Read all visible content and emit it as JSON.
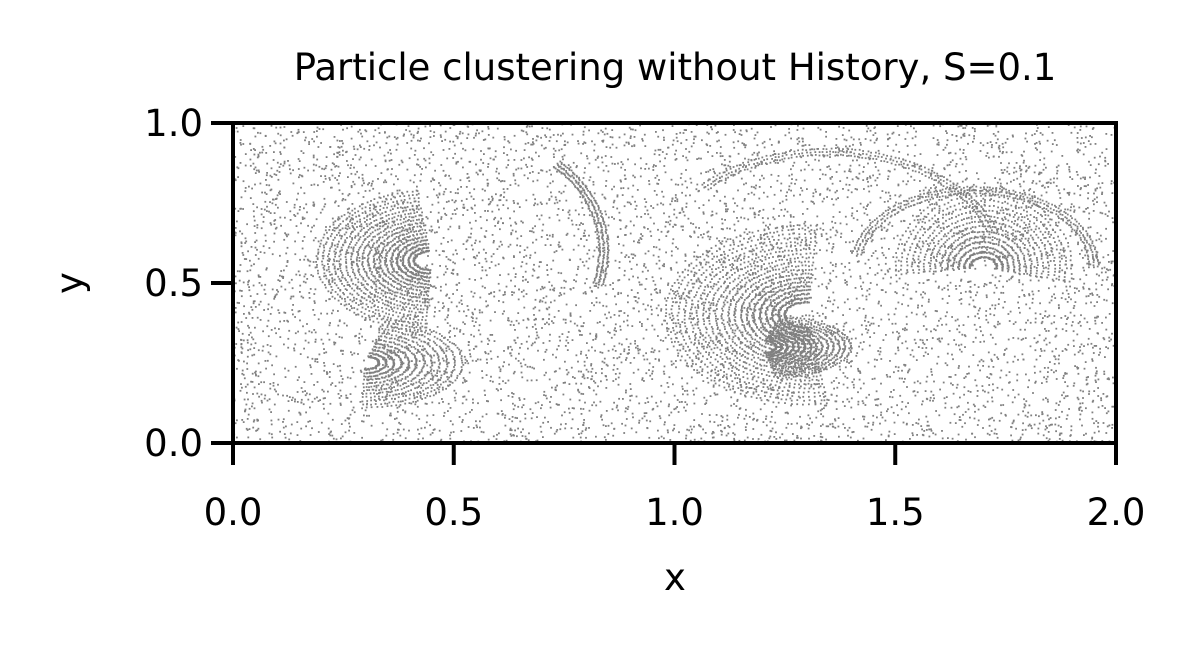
{
  "chart_data": {
    "type": "scatter",
    "title": "Particle clustering without History, S=0.1",
    "xlabel": "x",
    "ylabel": "y",
    "xlim": [
      0.0,
      2.0
    ],
    "ylim": [
      0.0,
      1.0
    ],
    "xticks": [
      0.0,
      0.5,
      1.0,
      1.5,
      2.0
    ],
    "yticks": [
      0.0,
      0.5,
      1.0
    ],
    "xtick_labels": [
      "0.0",
      "0.5",
      "1.0",
      "1.5",
      "2.0"
    ],
    "ytick_labels": [
      "0.0",
      "0.5",
      "1.0"
    ],
    "grid": false,
    "legend": false,
    "marker_color": "#808080",
    "series": [
      {
        "points_sample": [
          [
            0.05,
            0.1
          ],
          [
            0.1,
            0.8
          ],
          [
            0.15,
            0.3
          ],
          [
            0.2,
            0.55
          ],
          [
            0.25,
            0.72
          ],
          [
            0.3,
            0.2
          ],
          [
            0.35,
            0.62
          ],
          [
            0.4,
            0.45
          ],
          [
            0.45,
            0.85
          ],
          [
            0.5,
            0.3
          ],
          [
            0.55,
            0.7
          ],
          [
            0.6,
            0.15
          ],
          [
            0.65,
            0.9
          ],
          [
            0.7,
            0.4
          ],
          [
            0.75,
            0.05
          ],
          [
            0.8,
            0.6
          ],
          [
            0.85,
            0.25
          ],
          [
            0.9,
            0.95
          ],
          [
            0.95,
            0.5
          ],
          [
            1.0,
            0.1
          ],
          [
            1.05,
            0.65
          ],
          [
            1.1,
            0.35
          ],
          [
            1.15,
            0.8
          ],
          [
            1.2,
            0.28
          ],
          [
            1.25,
            0.52
          ],
          [
            1.3,
            0.12
          ],
          [
            1.35,
            0.75
          ],
          [
            1.4,
            0.4
          ],
          [
            1.45,
            0.9
          ],
          [
            1.5,
            0.2
          ],
          [
            1.55,
            0.6
          ],
          [
            1.6,
            0.45
          ],
          [
            1.65,
            0.7
          ],
          [
            1.7,
            0.3
          ],
          [
            1.75,
            0.85
          ],
          [
            1.8,
            0.15
          ],
          [
            1.85,
            0.55
          ],
          [
            1.9,
            0.95
          ],
          [
            1.95,
            0.35
          ],
          [
            1.99,
            0.65
          ]
        ]
      }
    ]
  }
}
